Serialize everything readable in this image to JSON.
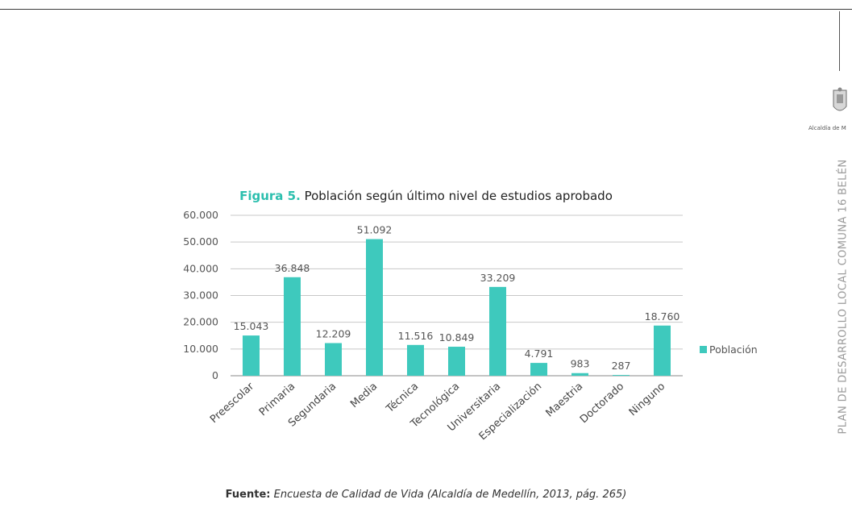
{
  "page": {
    "side_text": "PLAN DE DESARROLLO LOCAL COMUNA 16 BELÉN",
    "logo_text": "Alcaldía de M",
    "source_label": "Fuente:",
    "source_text": "Encuesta de Calidad de Vida (Alcaldía de Medellín, 2013, pág. 265)"
  },
  "chart_data": {
    "type": "bar",
    "title_prefix": "Figura 5.",
    "title": "Población según último nivel de estudios aprobado",
    "categories": [
      "Preescolar",
      "Primaria",
      "Segundaria",
      "Media",
      "Técnica",
      "Tecnológica",
      "Universitaria",
      "Especialización",
      "Maestria",
      "Doctorado",
      "Ninguno"
    ],
    "series": [
      {
        "name": "Población",
        "values": [
          15043,
          36848,
          12209,
          51092,
          11516,
          10849,
          33209,
          4791,
          983,
          287,
          18760
        ],
        "labels": [
          "15.043",
          "36.848",
          "12.209",
          "51.092",
          "11.516",
          "10.849",
          "33.209",
          "4.791",
          "983",
          "287",
          "18.760"
        ]
      }
    ],
    "y_ticks": [
      0,
      10000,
      20000,
      30000,
      40000,
      50000,
      60000
    ],
    "y_tick_labels": [
      "0",
      "10.000",
      "20.000",
      "30.000",
      "40.000",
      "50.000",
      "60.000"
    ],
    "ylim": [
      0,
      60000
    ],
    "grid": true,
    "legend_position": "right",
    "colors": {
      "bar": "#3ec9bd",
      "title_accent": "#2cbfae",
      "grid": "#c8c8c8"
    }
  }
}
